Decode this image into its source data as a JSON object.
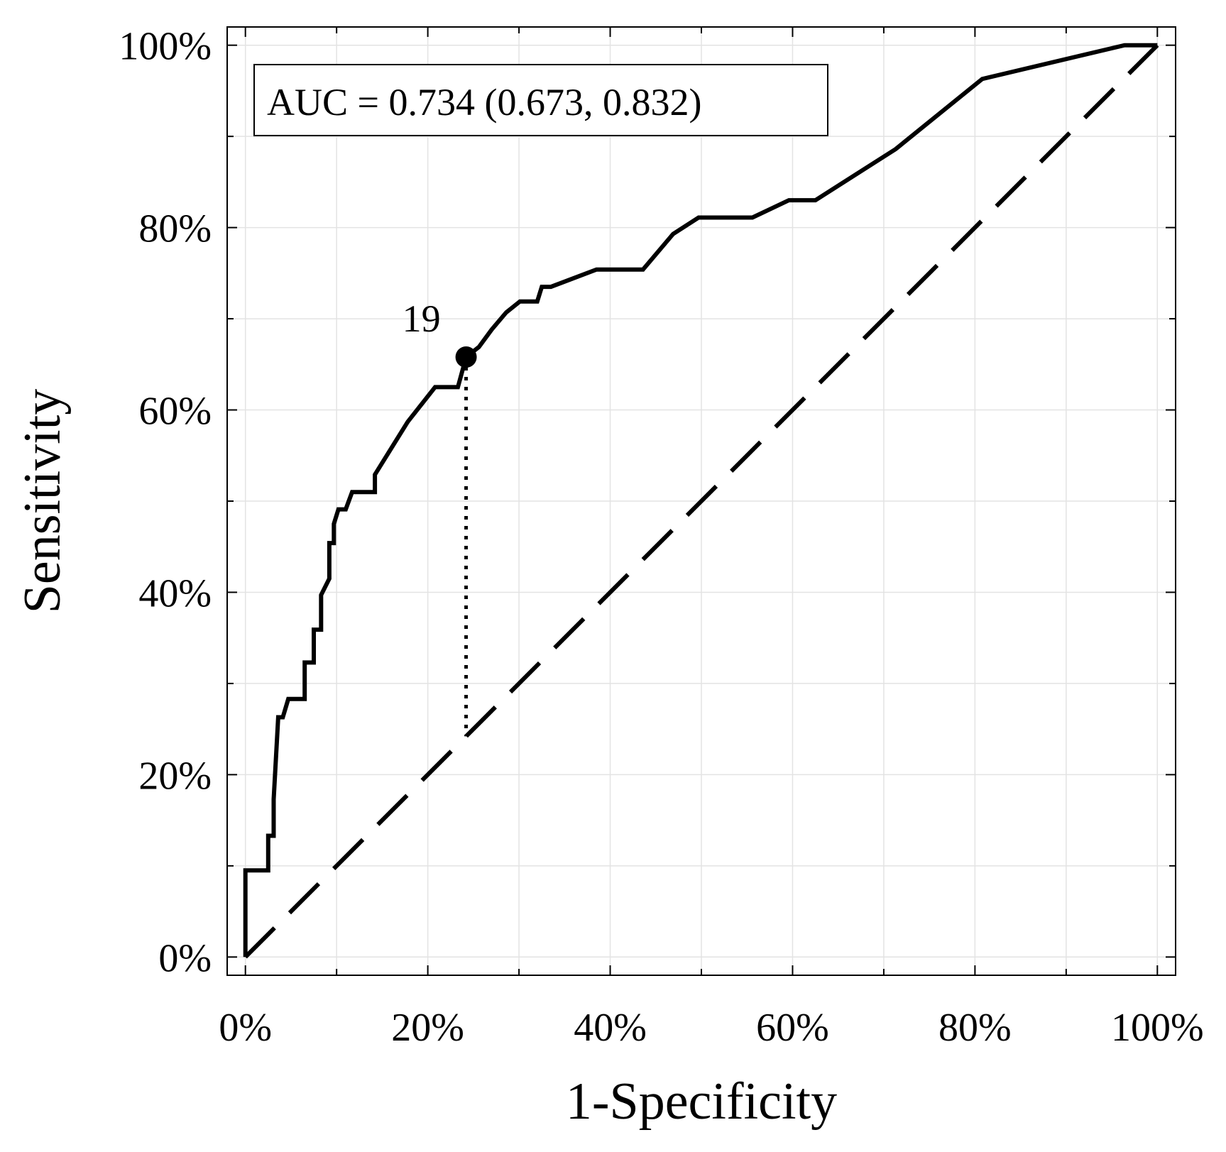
{
  "chart_data": {
    "type": "line",
    "title": "",
    "xlabel": "1-Specificity",
    "ylabel": "Sensitivity",
    "xlim": [
      -2,
      102
    ],
    "ylim": [
      -2,
      102
    ],
    "x_ticks": [
      0,
      20,
      40,
      60,
      80,
      100
    ],
    "y_ticks": [
      0,
      20,
      40,
      60,
      80,
      100
    ],
    "x_tick_labels": [
      "0%",
      "20%",
      "40%",
      "60%",
      "80%",
      "100%"
    ],
    "y_tick_labels": [
      "0%",
      "20%",
      "40%",
      "60%",
      "80%",
      "100%"
    ],
    "minor_ticks": [
      10,
      30,
      50,
      70,
      90
    ],
    "grid": true,
    "series": [
      {
        "name": "ROC curve",
        "style": "solid",
        "x": [
          0,
          0,
          2.5,
          2.5,
          3.1,
          3.1,
          3.6,
          4.1,
          4.7,
          5.1,
          6.5,
          6.5,
          7.5,
          7.5,
          8.3,
          8.3,
          9.2,
          9.2,
          9.7,
          9.7,
          10.2,
          11.0,
          11.7,
          14.2,
          14.2,
          17.8,
          20.8,
          23.3,
          24.2,
          25.6,
          27.0,
          28.6,
          30.1,
          32.0,
          32.5,
          33.5,
          38.5,
          43.6,
          46.9,
          49.7,
          55.6,
          59.6,
          62.5,
          71.3,
          80.8,
          96.4,
          100
        ],
        "y": [
          0,
          9.5,
          9.5,
          13.3,
          13.3,
          17.3,
          26.3,
          26.3,
          28.3,
          28.3,
          28.3,
          32.3,
          32.3,
          35.9,
          35.9,
          39.7,
          41.5,
          45.4,
          45.4,
          47.5,
          49.1,
          49.1,
          51.0,
          51.0,
          52.9,
          58.7,
          62.5,
          62.5,
          65.8,
          66.9,
          68.8,
          70.7,
          71.9,
          71.9,
          73.5,
          73.5,
          75.4,
          75.4,
          79.3,
          81.1,
          81.1,
          83.0,
          83.0,
          88.6,
          96.3,
          100,
          100
        ]
      },
      {
        "name": "Reference line",
        "style": "dashed",
        "x": [
          0,
          100
        ],
        "y": [
          0,
          100
        ]
      }
    ],
    "points": [
      {
        "label": "19",
        "x": 24.2,
        "y": 65.8
      }
    ],
    "vertical_marker": {
      "x": 24.2,
      "y_from": 65.8,
      "y_to": 24.2,
      "style": "dotted"
    },
    "annotations": [
      {
        "text": "AUC = 0.734 (0.673, 0.832)",
        "position": "top-left"
      }
    ]
  },
  "colors": {
    "line": "#000000",
    "grid": "#e3e3e3",
    "frame": "#000000",
    "background": "#ffffff"
  }
}
